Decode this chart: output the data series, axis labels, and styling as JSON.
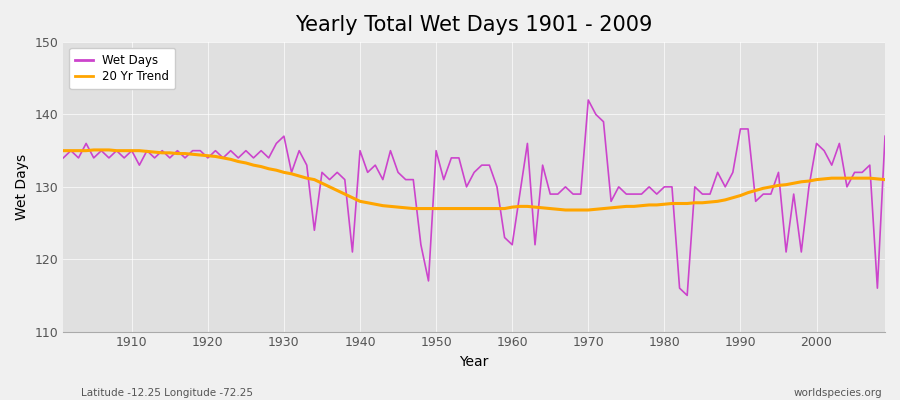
{
  "title": "Yearly Total Wet Days 1901 - 2009",
  "ylabel": "Wet Days",
  "xlabel": "Year",
  "lat_lon_label": "Latitude -12.25 Longitude -72.25",
  "source_label": "worldspecies.org",
  "ylim": [
    110,
    150
  ],
  "xlim": [
    1901,
    2009
  ],
  "wet_days_color": "#CC44CC",
  "trend_color": "#FFA500",
  "bg_color": "#F0F0F0",
  "plot_bg_color": "#E0E0E0",
  "title_fontsize": 15,
  "axis_fontsize": 10,
  "years": [
    1901,
    1902,
    1903,
    1904,
    1905,
    1906,
    1907,
    1908,
    1909,
    1910,
    1911,
    1912,
    1913,
    1914,
    1915,
    1916,
    1917,
    1918,
    1919,
    1920,
    1921,
    1922,
    1923,
    1924,
    1925,
    1926,
    1927,
    1928,
    1929,
    1930,
    1931,
    1932,
    1933,
    1934,
    1935,
    1936,
    1937,
    1938,
    1939,
    1940,
    1941,
    1942,
    1943,
    1944,
    1945,
    1946,
    1947,
    1948,
    1949,
    1950,
    1951,
    1952,
    1953,
    1954,
    1955,
    1956,
    1957,
    1958,
    1959,
    1960,
    1961,
    1962,
    1963,
    1964,
    1965,
    1966,
    1967,
    1968,
    1969,
    1970,
    1971,
    1972,
    1973,
    1974,
    1975,
    1976,
    1977,
    1978,
    1979,
    1980,
    1981,
    1982,
    1983,
    1984,
    1985,
    1986,
    1987,
    1988,
    1989,
    1990,
    1991,
    1992,
    1993,
    1994,
    1995,
    1996,
    1997,
    1998,
    1999,
    2000,
    2001,
    2002,
    2003,
    2004,
    2005,
    2006,
    2007,
    2008,
    2009
  ],
  "wet_days": [
    134,
    135,
    134,
    136,
    134,
    135,
    134,
    135,
    134,
    135,
    133,
    135,
    134,
    135,
    134,
    135,
    134,
    135,
    135,
    134,
    135,
    134,
    135,
    134,
    135,
    134,
    135,
    134,
    136,
    137,
    132,
    135,
    133,
    124,
    132,
    131,
    132,
    131,
    121,
    135,
    132,
    133,
    131,
    135,
    132,
    131,
    131,
    122,
    117,
    135,
    131,
    134,
    134,
    130,
    132,
    133,
    133,
    130,
    123,
    122,
    129,
    136,
    122,
    133,
    129,
    129,
    130,
    129,
    129,
    142,
    140,
    139,
    128,
    130,
    129,
    129,
    129,
    130,
    129,
    130,
    130,
    116,
    115,
    130,
    129,
    129,
    132,
    130,
    132,
    138,
    138,
    128,
    129,
    129,
    132,
    121,
    129,
    121,
    130,
    136,
    135,
    133,
    136,
    130,
    132,
    132,
    133,
    116,
    137
  ],
  "trend": [
    135.0,
    135.0,
    135.0,
    135.0,
    135.1,
    135.1,
    135.1,
    135.0,
    135.0,
    135.0,
    135.0,
    134.9,
    134.8,
    134.7,
    134.7,
    134.6,
    134.6,
    134.5,
    134.4,
    134.3,
    134.2,
    134.0,
    133.8,
    133.5,
    133.3,
    133.0,
    132.8,
    132.5,
    132.3,
    132.0,
    131.8,
    131.5,
    131.2,
    131.0,
    130.5,
    130.0,
    129.5,
    129.0,
    128.5,
    128.0,
    127.8,
    127.6,
    127.4,
    127.3,
    127.2,
    127.1,
    127.0,
    127.0,
    127.0,
    127.0,
    127.0,
    127.0,
    127.0,
    127.0,
    127.0,
    127.0,
    127.0,
    127.0,
    127.0,
    127.2,
    127.3,
    127.3,
    127.2,
    127.1,
    127.0,
    126.9,
    126.8,
    126.8,
    126.8,
    126.8,
    126.9,
    127.0,
    127.1,
    127.2,
    127.3,
    127.3,
    127.4,
    127.5,
    127.5,
    127.6,
    127.7,
    127.7,
    127.7,
    127.8,
    127.8,
    127.9,
    128.0,
    128.2,
    128.5,
    128.8,
    129.2,
    129.5,
    129.8,
    130.0,
    130.2,
    130.3,
    130.5,
    130.7,
    130.8,
    131.0,
    131.1,
    131.2,
    131.2,
    131.2,
    131.2,
    131.2,
    131.2,
    131.1,
    131.0
  ]
}
